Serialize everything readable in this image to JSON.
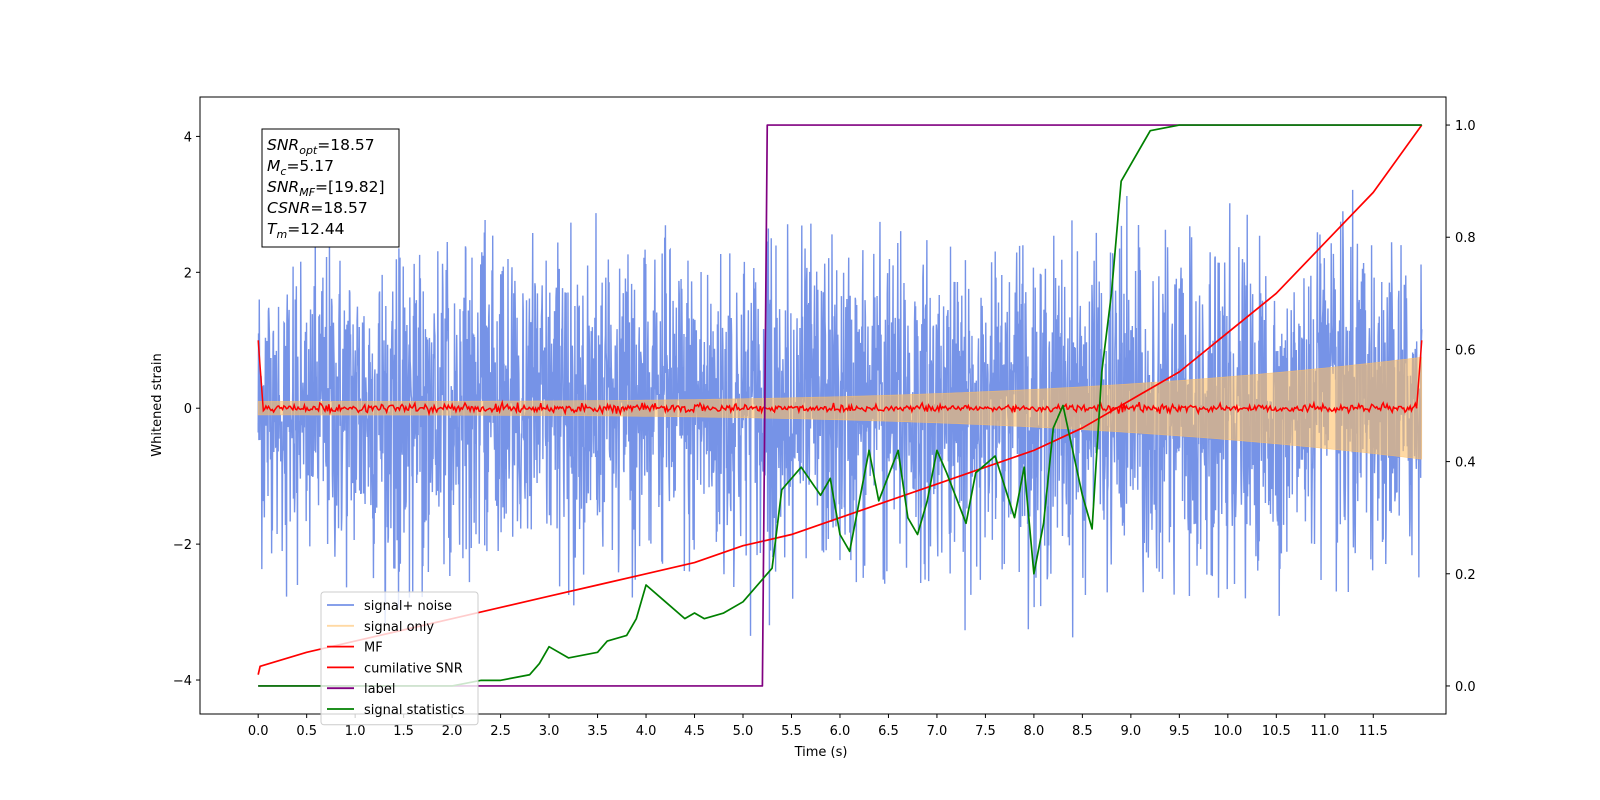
{
  "chart_data": {
    "type": "line",
    "xlabel": "Time (s)",
    "ylabel": "Whitened strain",
    "xlim": [
      -0.6,
      12.25
    ],
    "ylim": [
      -4.5,
      4.58
    ],
    "y2lim": [
      -0.05,
      1.05
    ],
    "grid": false,
    "legend_position": "lower-left",
    "x_ticks": [
      "0.0",
      "0.5",
      "1.0",
      "1.5",
      "2.0",
      "2.5",
      "3.0",
      "3.5",
      "4.0",
      "4.5",
      "5.0",
      "5.5",
      "6.0",
      "6.5",
      "7.0",
      "7.5",
      "8.0",
      "8.5",
      "9.0",
      "9.5",
      "10.0",
      "10.5",
      "11.0",
      "11.5"
    ],
    "y_ticks": [
      "−4",
      "−2",
      "0",
      "2",
      "4"
    ],
    "y2_ticks": [
      "0.0",
      "0.2",
      "0.4",
      "0.6",
      "0.8",
      "1.0"
    ],
    "annotation": {
      "lines": [
        {
          "base": "SNR",
          "sub": "opt",
          "rest": "=18.57"
        },
        {
          "base": "M",
          "sub": "c",
          "rest": "=5.17"
        },
        {
          "base": "SNR",
          "sub": "MF",
          "rest": "=[19.82]"
        },
        {
          "base": "CSNR",
          "sub": "",
          "rest": "=18.57"
        },
        {
          "base": "T",
          "sub": "m",
          "rest": "=12.44"
        }
      ]
    },
    "series": [
      {
        "name": "signal+ noise",
        "color": "#6f8de6",
        "axis": "left",
        "kind": "noise",
        "t_range": [
          0.0,
          12.0
        ],
        "std": 1.15,
        "band_max": [
          2.3,
          3.3
        ],
        "band_min": [
          -2.3,
          -3.6
        ]
      },
      {
        "name": "signal only",
        "color": "#ffbf66",
        "axis": "left",
        "kind": "chirp",
        "t_range": [
          0.0,
          12.0
        ],
        "amplitude_start": 0.1,
        "amplitude_end": 0.75
      },
      {
        "name": "MF",
        "color": "#ff0000",
        "axis": "left",
        "kind": "mf",
        "t_range": [
          0.0,
          12.0
        ],
        "start_value": 1.0,
        "end_value": 1.0,
        "ripple": 0.05
      },
      {
        "name": "cumilative SNR",
        "color": "#ff0000",
        "axis": "right",
        "x": [
          0.0,
          0.02,
          0.5,
          1.0,
          1.5,
          2.0,
          2.5,
          3.0,
          3.5,
          4.0,
          4.5,
          5.0,
          5.5,
          6.0,
          6.5,
          7.0,
          7.5,
          8.0,
          8.5,
          9.0,
          9.5,
          10.0,
          10.5,
          11.0,
          11.5,
          12.0
        ],
        "y": [
          0.02,
          0.035,
          0.06,
          0.08,
          0.1,
          0.12,
          0.14,
          0.16,
          0.18,
          0.2,
          0.22,
          0.25,
          0.27,
          0.3,
          0.33,
          0.36,
          0.39,
          0.42,
          0.46,
          0.51,
          0.56,
          0.63,
          0.7,
          0.79,
          0.88,
          1.0
        ]
      },
      {
        "name": "label",
        "color": "#800080",
        "axis": "right",
        "x": [
          0.0,
          5.2,
          5.25,
          12.0
        ],
        "y": [
          0.0,
          0.0,
          1.0,
          1.0
        ]
      },
      {
        "name": "signal statistics",
        "color": "#008000",
        "axis": "right",
        "x": [
          0.0,
          0.5,
          1.0,
          1.5,
          2.0,
          2.3,
          2.5,
          2.8,
          2.9,
          3.0,
          3.2,
          3.5,
          3.6,
          3.8,
          3.9,
          4.0,
          4.2,
          4.4,
          4.5,
          4.6,
          4.8,
          5.0,
          5.2,
          5.3,
          5.4,
          5.5,
          5.6,
          5.8,
          5.9,
          6.0,
          6.1,
          6.3,
          6.4,
          6.6,
          6.7,
          6.8,
          6.9,
          7.0,
          7.1,
          7.3,
          7.4,
          7.6,
          7.8,
          7.9,
          8.0,
          8.1,
          8.2,
          8.3,
          8.5,
          8.6,
          8.7,
          8.8,
          8.9,
          9.0,
          9.2,
          9.5,
          10.0,
          11.0,
          12.0
        ],
        "y": [
          0.0,
          0.0,
          0.0,
          0.0,
          0.0,
          0.01,
          0.01,
          0.02,
          0.04,
          0.07,
          0.05,
          0.06,
          0.08,
          0.09,
          0.12,
          0.18,
          0.15,
          0.12,
          0.13,
          0.12,
          0.13,
          0.15,
          0.19,
          0.21,
          0.35,
          0.37,
          0.39,
          0.34,
          0.37,
          0.27,
          0.24,
          0.42,
          0.33,
          0.42,
          0.3,
          0.27,
          0.33,
          0.42,
          0.38,
          0.29,
          0.38,
          0.41,
          0.3,
          0.39,
          0.2,
          0.29,
          0.46,
          0.5,
          0.34,
          0.28,
          0.56,
          0.7,
          0.9,
          0.93,
          0.99,
          1.0,
          1.0,
          1.0,
          1.0
        ]
      }
    ]
  }
}
